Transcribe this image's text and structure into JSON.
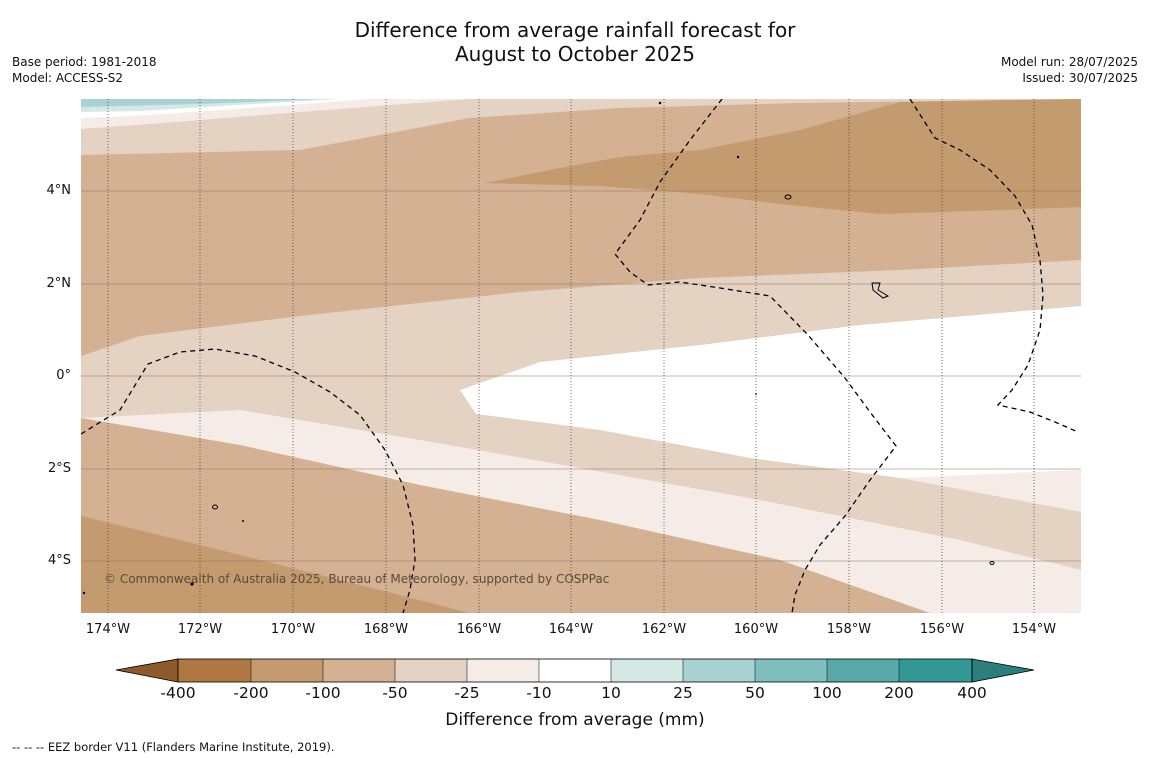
{
  "header": {
    "title_line1": "Difference from average rainfall forecast for",
    "title_line2": "August to October 2025",
    "base_period": "Base period: 1981-2018",
    "model": "Model: ACCESS-S2",
    "model_run": "Model run: 28/07/2025",
    "issued": "Issued: 30/07/2025"
  },
  "map": {
    "lon_ticks": [
      "174°W",
      "172°W",
      "170°W",
      "168°W",
      "166°W",
      "164°W",
      "162°W",
      "160°W",
      "158°W",
      "156°W",
      "154°W"
    ],
    "lat_ticks": [
      "4°N",
      "2°N",
      "0°",
      "2°S",
      "4°S"
    ],
    "copyright": "© Commonwealth of Australia 2025, Bureau of Meteorology, supported by COSPPac"
  },
  "colorbar": {
    "labels": [
      "-400",
      "-200",
      "-100",
      "-50",
      "-25",
      "-10",
      "10",
      "25",
      "50",
      "100",
      "200",
      "400"
    ],
    "colors": [
      "#a8733a",
      "#b57e44",
      "#c49a6f",
      "#d4b192",
      "#e4d2c2",
      "#f5ece7",
      "#ffffff",
      "#d4e9e6",
      "#a9d3d3",
      "#7fbfbd",
      "#58a9a7",
      "#329896",
      "#2a8280"
    ],
    "title": "Difference from average (mm)"
  },
  "footnote": "--  --  -- EEZ border V11 (Flanders Marine Institute, 2019)."
}
